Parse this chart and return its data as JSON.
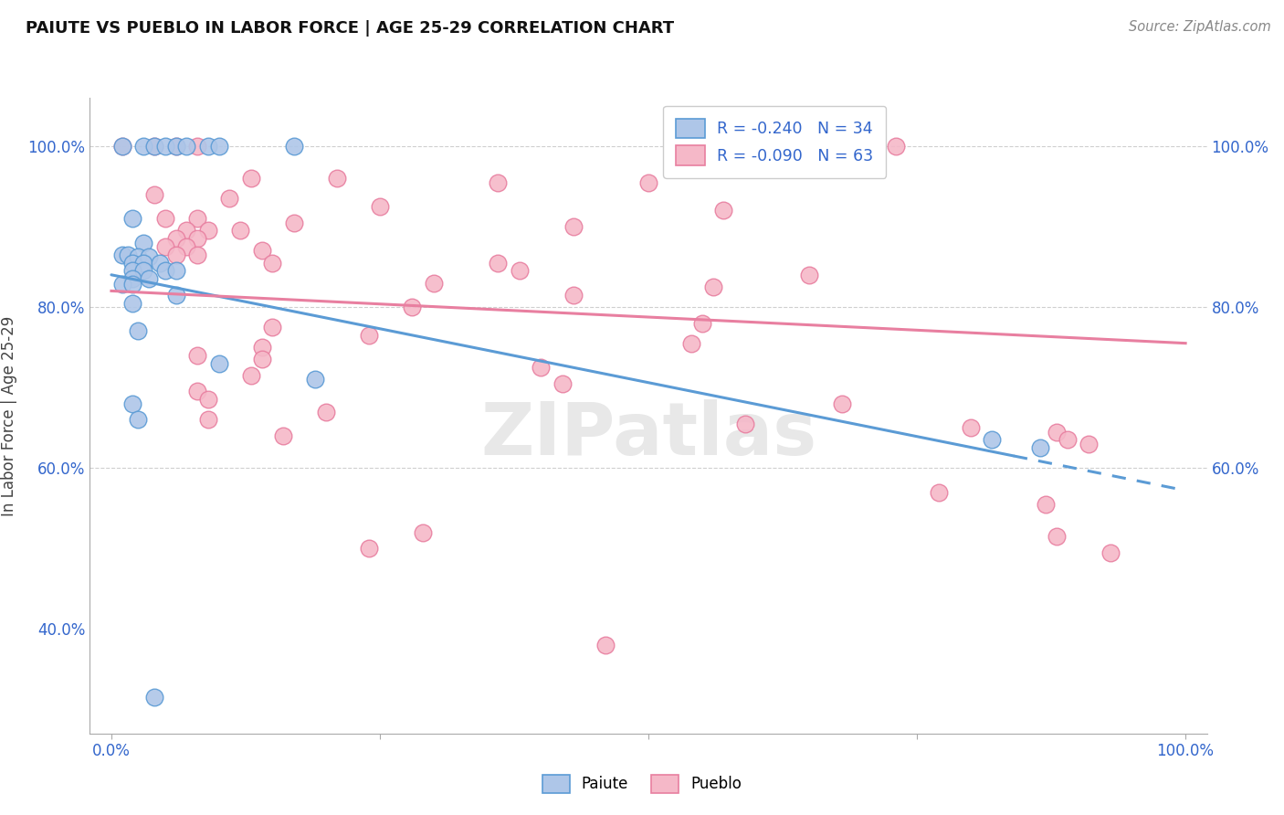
{
  "title": "PAIUTE VS PUEBLO IN LABOR FORCE | AGE 25-29 CORRELATION CHART",
  "ylabel_label": "In Labor Force | Age 25-29",
  "source_text": "Source: ZipAtlas.com",
  "watermark": "ZIPatlas",
  "xlim": [
    -0.02,
    1.02
  ],
  "ylim": [
    0.27,
    1.06
  ],
  "paiute_scatter": [
    [
      0.01,
      1.0
    ],
    [
      0.03,
      1.0
    ],
    [
      0.04,
      1.0
    ],
    [
      0.05,
      1.0
    ],
    [
      0.06,
      1.0
    ],
    [
      0.07,
      1.0
    ],
    [
      0.09,
      1.0
    ],
    [
      0.1,
      1.0
    ],
    [
      0.17,
      1.0
    ],
    [
      0.02,
      0.91
    ],
    [
      0.03,
      0.88
    ],
    [
      0.01,
      0.865
    ],
    [
      0.015,
      0.865
    ],
    [
      0.025,
      0.862
    ],
    [
      0.035,
      0.862
    ],
    [
      0.02,
      0.855
    ],
    [
      0.03,
      0.855
    ],
    [
      0.045,
      0.855
    ],
    [
      0.02,
      0.845
    ],
    [
      0.03,
      0.845
    ],
    [
      0.05,
      0.845
    ],
    [
      0.06,
      0.845
    ],
    [
      0.02,
      0.835
    ],
    [
      0.035,
      0.835
    ],
    [
      0.01,
      0.828
    ],
    [
      0.02,
      0.828
    ],
    [
      0.06,
      0.815
    ],
    [
      0.02,
      0.805
    ],
    [
      0.025,
      0.77
    ],
    [
      0.1,
      0.73
    ],
    [
      0.19,
      0.71
    ],
    [
      0.02,
      0.68
    ],
    [
      0.025,
      0.66
    ],
    [
      0.82,
      0.635
    ],
    [
      0.865,
      0.625
    ],
    [
      0.04,
      0.315
    ]
  ],
  "pueblo_scatter": [
    [
      0.01,
      1.0
    ],
    [
      0.04,
      1.0
    ],
    [
      0.06,
      1.0
    ],
    [
      0.08,
      1.0
    ],
    [
      0.7,
      1.0
    ],
    [
      0.73,
      1.0
    ],
    [
      0.13,
      0.96
    ],
    [
      0.21,
      0.96
    ],
    [
      0.36,
      0.955
    ],
    [
      0.5,
      0.955
    ],
    [
      0.04,
      0.94
    ],
    [
      0.11,
      0.935
    ],
    [
      0.25,
      0.925
    ],
    [
      0.57,
      0.92
    ],
    [
      0.05,
      0.91
    ],
    [
      0.08,
      0.91
    ],
    [
      0.17,
      0.905
    ],
    [
      0.43,
      0.9
    ],
    [
      0.07,
      0.895
    ],
    [
      0.09,
      0.895
    ],
    [
      0.12,
      0.895
    ],
    [
      0.06,
      0.885
    ],
    [
      0.08,
      0.885
    ],
    [
      0.05,
      0.875
    ],
    [
      0.07,
      0.875
    ],
    [
      0.14,
      0.87
    ],
    [
      0.06,
      0.865
    ],
    [
      0.08,
      0.865
    ],
    [
      0.15,
      0.855
    ],
    [
      0.36,
      0.855
    ],
    [
      0.38,
      0.845
    ],
    [
      0.65,
      0.84
    ],
    [
      0.3,
      0.83
    ],
    [
      0.56,
      0.825
    ],
    [
      0.43,
      0.815
    ],
    [
      0.28,
      0.8
    ],
    [
      0.55,
      0.78
    ],
    [
      0.15,
      0.775
    ],
    [
      0.24,
      0.765
    ],
    [
      0.54,
      0.755
    ],
    [
      0.14,
      0.75
    ],
    [
      0.08,
      0.74
    ],
    [
      0.14,
      0.735
    ],
    [
      0.4,
      0.725
    ],
    [
      0.13,
      0.715
    ],
    [
      0.42,
      0.705
    ],
    [
      0.08,
      0.695
    ],
    [
      0.09,
      0.685
    ],
    [
      0.68,
      0.68
    ],
    [
      0.2,
      0.67
    ],
    [
      0.09,
      0.66
    ],
    [
      0.59,
      0.655
    ],
    [
      0.8,
      0.65
    ],
    [
      0.88,
      0.645
    ],
    [
      0.16,
      0.64
    ],
    [
      0.89,
      0.635
    ],
    [
      0.91,
      0.63
    ],
    [
      0.77,
      0.57
    ],
    [
      0.87,
      0.555
    ],
    [
      0.29,
      0.52
    ],
    [
      0.24,
      0.5
    ],
    [
      0.93,
      0.495
    ],
    [
      0.46,
      0.38
    ],
    [
      0.88,
      0.515
    ]
  ],
  "paiute_line_solid": {
    "x0": 0.0,
    "y0": 0.84,
    "x1": 0.84,
    "y1": 0.615
  },
  "paiute_line_dashed": {
    "x0": 0.84,
    "y0": 0.615,
    "x1": 1.0,
    "y1": 0.572
  },
  "pueblo_line": {
    "x0": 0.0,
    "y0": 0.82,
    "x1": 1.0,
    "y1": 0.755
  },
  "blue_color": "#5b9bd5",
  "pink_color": "#e87fa0",
  "blue_fill": "#aec6e8",
  "pink_fill": "#f5b8c8",
  "grid_color": "#bbbbbb",
  "background_color": "#ffffff",
  "ytick_left": [
    0.4,
    0.6,
    0.8,
    1.0
  ],
  "ytick_right": [
    0.6,
    0.8,
    1.0
  ],
  "xtick_labels_show": [
    "0.0%",
    "100.0%"
  ],
  "xtick_positions_show": [
    0.0,
    1.0
  ]
}
